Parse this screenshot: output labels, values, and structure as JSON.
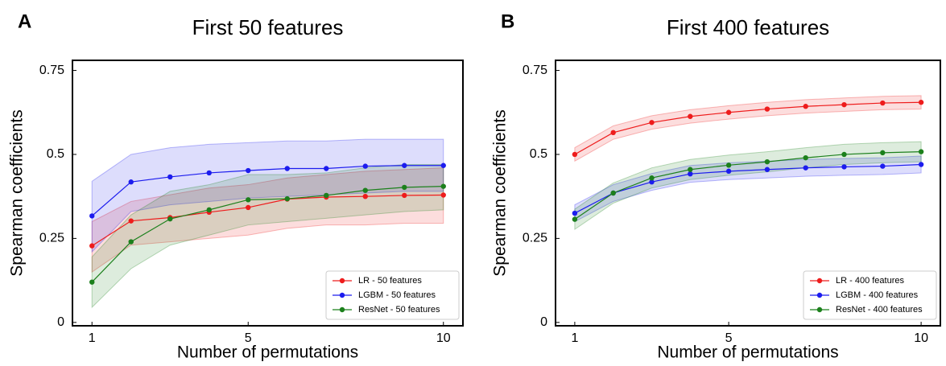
{
  "chart_data": [
    {
      "type": "line",
      "panel_label": "A",
      "title": "First 50 features",
      "x_label": "Number of permutations",
      "y_label": "Spearman coefficients",
      "x": [
        1,
        2,
        3,
        4,
        5,
        6,
        7,
        8,
        9,
        10
      ],
      "xlim": [
        0.5,
        10.5
      ],
      "xticks": [
        1,
        5,
        10
      ],
      "ylim": [
        -0.01,
        0.78
      ],
      "yticks": [
        0,
        0.25,
        0.5,
        0.75
      ],
      "legend": "lower right",
      "series": [
        {
          "name": "LR - 50 features",
          "color": "#ee1c1c",
          "values": [
            0.228,
            0.302,
            0.312,
            0.328,
            0.342,
            0.367,
            0.373,
            0.375,
            0.378,
            0.379
          ],
          "lower": [
            0.15,
            0.23,
            0.24,
            0.25,
            0.26,
            0.28,
            0.29,
            0.29,
            0.295,
            0.295
          ],
          "upper": [
            0.3,
            0.36,
            0.38,
            0.4,
            0.41,
            0.43,
            0.44,
            0.45,
            0.455,
            0.46
          ]
        },
        {
          "name": "LGBM - 50 features",
          "color": "#1c1cee",
          "values": [
            0.317,
            0.418,
            0.433,
            0.445,
            0.452,
            0.458,
            0.458,
            0.465,
            0.467,
            0.467
          ],
          "lower": [
            0.21,
            0.33,
            0.35,
            0.36,
            0.37,
            0.375,
            0.38,
            0.385,
            0.39,
            0.39
          ],
          "upper": [
            0.42,
            0.5,
            0.52,
            0.53,
            0.535,
            0.54,
            0.54,
            0.545,
            0.545,
            0.545
          ]
        },
        {
          "name": "ResNet - 50 features",
          "color": "#1c801c",
          "values": [
            0.12,
            0.24,
            0.308,
            0.335,
            0.365,
            0.368,
            0.378,
            0.393,
            0.402,
            0.405
          ],
          "lower": [
            0.045,
            0.16,
            0.23,
            0.26,
            0.29,
            0.3,
            0.31,
            0.32,
            0.33,
            0.335
          ],
          "upper": [
            0.195,
            0.32,
            0.39,
            0.41,
            0.44,
            0.44,
            0.445,
            0.46,
            0.47,
            0.47
          ]
        }
      ]
    },
    {
      "type": "line",
      "panel_label": "B",
      "title": "First 400 features",
      "x_label": "Number of permutations",
      "y_label": "Spearman coefficients",
      "x": [
        1,
        2,
        3,
        4,
        5,
        6,
        7,
        8,
        9,
        10
      ],
      "xlim": [
        0.5,
        10.5
      ],
      "xticks": [
        1,
        5,
        10
      ],
      "ylim": [
        -0.01,
        0.78
      ],
      "yticks": [
        0,
        0.25,
        0.5,
        0.75
      ],
      "legend": "lower right",
      "series": [
        {
          "name": "LR - 400 features",
          "color": "#ee1c1c",
          "values": [
            0.5,
            0.565,
            0.595,
            0.613,
            0.625,
            0.635,
            0.643,
            0.648,
            0.653,
            0.655
          ],
          "lower": [
            0.48,
            0.545,
            0.575,
            0.593,
            0.605,
            0.615,
            0.623,
            0.628,
            0.633,
            0.635
          ],
          "upper": [
            0.52,
            0.585,
            0.615,
            0.633,
            0.645,
            0.655,
            0.663,
            0.668,
            0.673,
            0.675
          ]
        },
        {
          "name": "LGBM - 400 features",
          "color": "#1c1cee",
          "values": [
            0.325,
            0.385,
            0.418,
            0.442,
            0.45,
            0.455,
            0.46,
            0.463,
            0.465,
            0.47
          ],
          "lower": [
            0.3,
            0.36,
            0.393,
            0.417,
            0.425,
            0.43,
            0.435,
            0.438,
            0.44,
            0.445
          ],
          "upper": [
            0.35,
            0.41,
            0.443,
            0.467,
            0.475,
            0.48,
            0.485,
            0.488,
            0.49,
            0.495
          ]
        },
        {
          "name": "ResNet - 400 features",
          "color": "#1c801c",
          "values": [
            0.307,
            0.385,
            0.43,
            0.455,
            0.468,
            0.478,
            0.49,
            0.5,
            0.505,
            0.508
          ],
          "lower": [
            0.277,
            0.355,
            0.4,
            0.425,
            0.438,
            0.448,
            0.46,
            0.47,
            0.475,
            0.478
          ],
          "upper": [
            0.337,
            0.415,
            0.46,
            0.485,
            0.498,
            0.508,
            0.52,
            0.53,
            0.535,
            0.538
          ]
        }
      ]
    }
  ]
}
